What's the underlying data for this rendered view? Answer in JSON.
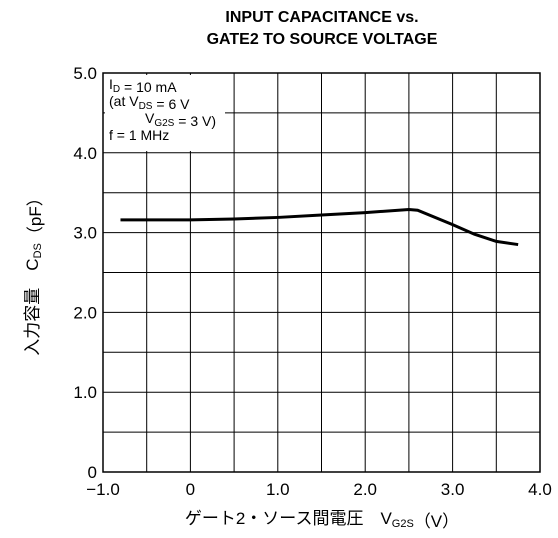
{
  "chart_data": {
    "type": "line",
    "title": [
      "INPUT CAPACITANCE vs.",
      "GATE2 TO SOURCE VOLTAGE"
    ],
    "ylabel": [
      {
        "text": "入力容量　C"
      },
      {
        "text": "DS",
        "sub": true
      },
      {
        "text": "（pF）"
      }
    ],
    "xlabel": [
      {
        "text": "ゲート2・ソース間電圧　V"
      },
      {
        "text": "G2S",
        "sub": true
      },
      {
        "text": "（V）"
      }
    ],
    "annotation": [
      [
        {
          "text": "I"
        },
        {
          "text": "D",
          "sub": true
        },
        {
          "text": " = 10 mA"
        }
      ],
      [
        {
          "text": "(at V"
        },
        {
          "text": "DS",
          "sub": true
        },
        {
          "text": " = 6 V"
        }
      ],
      [
        {
          "text": "V"
        },
        {
          "text": "G2S",
          "sub": true
        },
        {
          "text": " = 3 V)"
        }
      ],
      [
        {
          "text": "f = 1 MHz"
        }
      ]
    ],
    "xlim": [
      -1,
      4
    ],
    "ylim": [
      0,
      5
    ],
    "xticks": [
      {
        "value": -1,
        "label": "−1.0"
      },
      0,
      {
        "value": 1,
        "label": "1.0"
      },
      {
        "value": 2,
        "label": "2.0"
      },
      {
        "value": 3,
        "label": "3.0"
      },
      {
        "value": 4,
        "label": "4.0"
      }
    ],
    "yticks": [
      0,
      {
        "value": 1,
        "label": "1.0"
      },
      {
        "value": 2,
        "label": "2.0"
      },
      {
        "value": 3,
        "label": "3.0"
      },
      {
        "value": 4,
        "label": "4.0"
      },
      {
        "value": 5,
        "label": "5.0"
      }
    ],
    "minor_xticks": [
      -0.5,
      0.5,
      1.5,
      2.5,
      3.5
    ],
    "minor_yticks": [
      0.5,
      1.5,
      2.5,
      3.5,
      4.5
    ],
    "grid": true,
    "x": [
      -0.8,
      -0.5,
      0,
      0.5,
      1.0,
      1.5,
      2.0,
      2.5,
      2.6,
      3.0,
      3.25,
      3.5,
      3.75
    ],
    "series": [
      {
        "color": "#000000",
        "values": [
          3.16,
          3.16,
          3.16,
          3.17,
          3.19,
          3.22,
          3.25,
          3.29,
          3.28,
          3.1,
          2.98,
          2.89,
          2.85
        ]
      }
    ]
  }
}
